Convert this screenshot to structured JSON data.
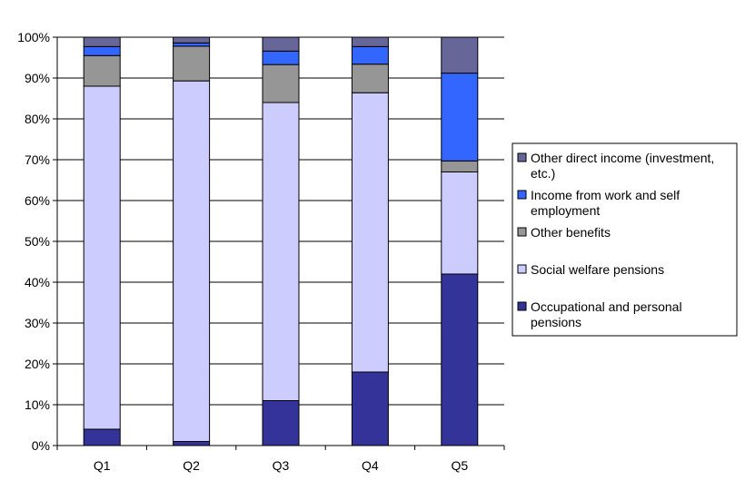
{
  "chart_data": {
    "type": "bar",
    "stacked": true,
    "percent": true,
    "categories": [
      "Q1",
      "Q2",
      "Q3",
      "Q4",
      "Q5"
    ],
    "ylim": [
      0,
      100
    ],
    "yticks": [
      "0%",
      "10%",
      "20%",
      "30%",
      "40%",
      "50%",
      "60%",
      "70%",
      "80%",
      "90%",
      "100%"
    ],
    "grid": true,
    "legend_position": "right",
    "series": [
      {
        "name": "Occupational and personal pensions",
        "color": "#333399",
        "values": [
          4,
          1,
          11,
          18,
          42
        ]
      },
      {
        "name": "Social welfare pensions",
        "color": "#CCCCFF",
        "values": [
          84,
          88.3,
          73,
          68.4,
          25
        ]
      },
      {
        "name": "Other benefits",
        "color": "#969696",
        "values": [
          7.5,
          8.5,
          9.3,
          7,
          2.7
        ]
      },
      {
        "name": "Income from work and self employment",
        "color": "#3366FF",
        "values": [
          2.2,
          0.8,
          3.3,
          4.3,
          21.5
        ]
      },
      {
        "name": "Other direct income (investment, etc.)",
        "color": "#666699",
        "values": [
          2.3,
          1.4,
          3.4,
          2.3,
          8.8
        ]
      }
    ],
    "legend": [
      {
        "lines": [
          "Other direct income (investment,",
          "etc.)"
        ],
        "color": "#666699"
      },
      {
        "lines": [
          "Income from work and self",
          "employment"
        ],
        "color": "#3366FF"
      },
      {
        "lines": [
          "Other benefits"
        ],
        "color": "#969696"
      },
      {
        "lines": [
          "Social welfare pensions"
        ],
        "color": "#CCCCFF"
      },
      {
        "lines": [
          "Occupational and personal",
          "pensions"
        ],
        "color": "#333399"
      }
    ]
  }
}
